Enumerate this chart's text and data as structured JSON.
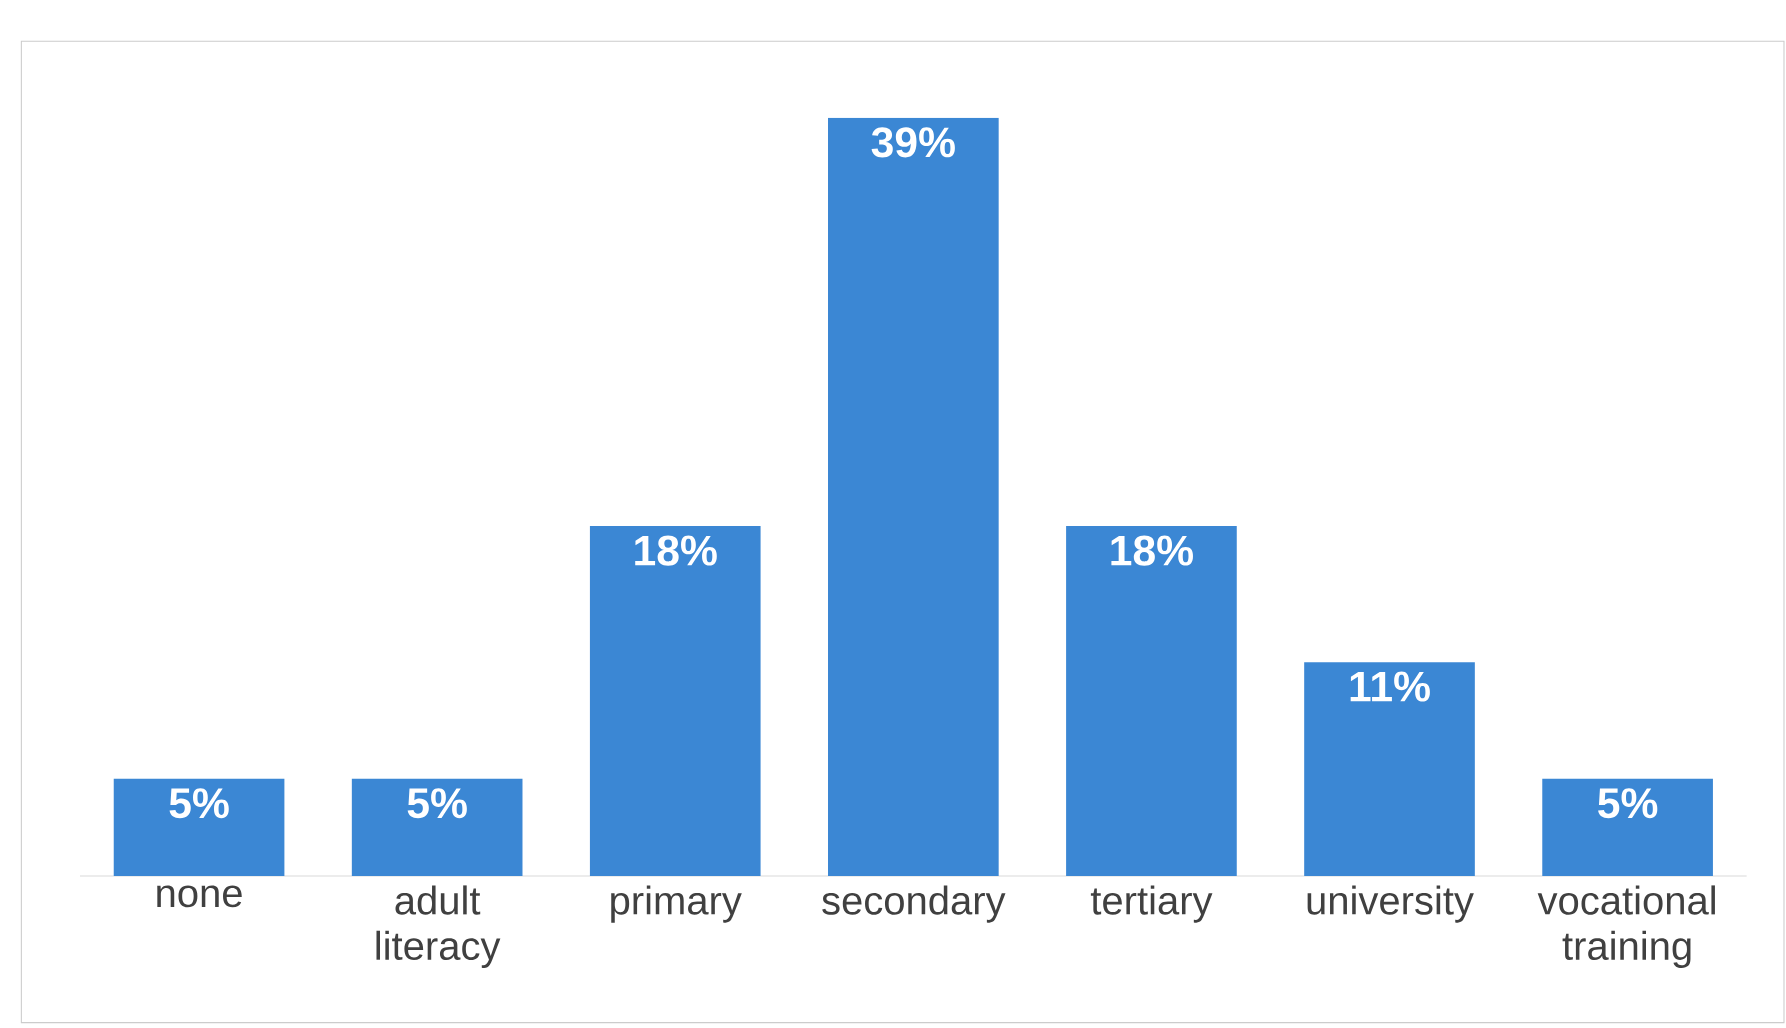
{
  "chart_data": {
    "type": "bar",
    "categories": [
      "none",
      "adult literacy",
      "primary",
      "secondary",
      "tertiary",
      "university",
      "vocational training"
    ],
    "values": [
      5,
      5,
      18,
      39,
      18,
      11,
      5
    ],
    "value_labels": [
      "5%",
      "5%",
      "18%",
      "39%",
      "18%",
      "11%",
      "5%"
    ],
    "color": "#3b87d4"
  }
}
